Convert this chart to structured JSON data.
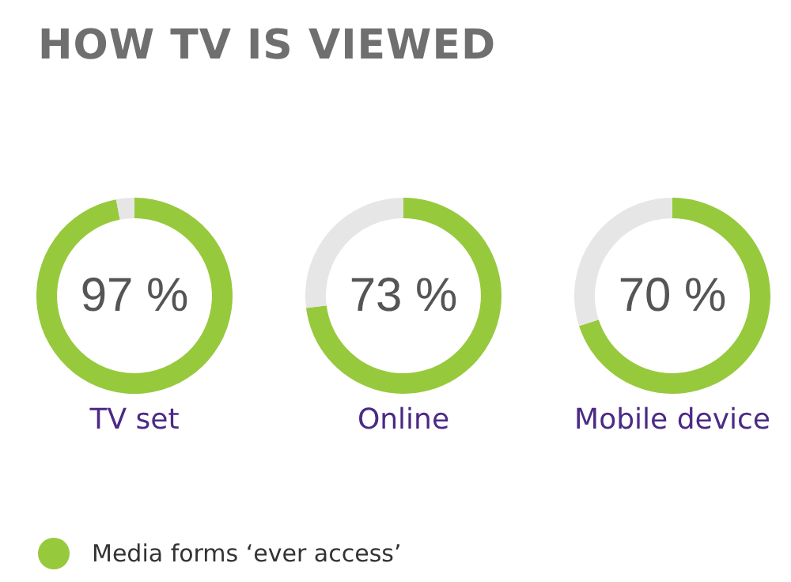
{
  "chart_data": [
    {
      "type": "donut",
      "title": "HOW TV IS VIEWED",
      "categories": [
        "Media forms ‘ever access’",
        null
      ],
      "values": [
        97,
        3
      ],
      "colors": [
        "#97c93d",
        "#e6e6e6"
      ],
      "value_labels": [
        "97 %",
        null
      ],
      "xlabel": "TV set",
      "legend": "bottom right"
    },
    {
      "type": "donut",
      "categories": [
        null,
        null
      ],
      "values": [
        73,
        27
      ],
      "colors": [
        "#97c93d",
        "#e6e6e6"
      ],
      "value_labels": [
        "73 %",
        null
      ],
      "xlabel": "Online"
    },
    {
      "type": "donut",
      "categories": [
        null,
        null
      ],
      "values": [
        70,
        30
      ],
      "colors": [
        "#97c93d",
        "#e6e6e6"
      ],
      "value_labels": [
        "70 %",
        null
      ],
      "xlabel": "Mobile device"
    }
  ]
}
